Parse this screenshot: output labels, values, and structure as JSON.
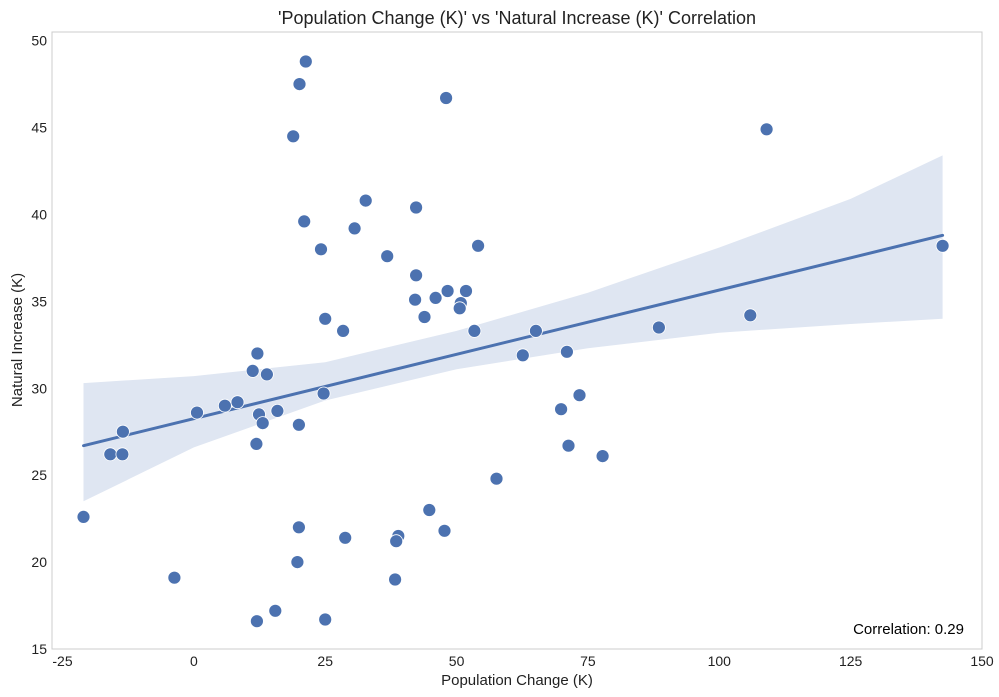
{
  "chart_data": {
    "type": "scatter",
    "title": "'Population Change (K)' vs 'Natural Increase (K)' Correlation",
    "xlabel": "Population Change (K)",
    "ylabel": "Natural Increase (K)",
    "xlim": [
      -27,
      150
    ],
    "ylim": [
      15,
      50.5
    ],
    "xticks": [
      -25,
      0,
      25,
      50,
      75,
      100,
      125,
      150
    ],
    "yticks": [
      15,
      20,
      25,
      30,
      35,
      40,
      45,
      50
    ],
    "grid": false,
    "annotation": "Correlation: 0.29",
    "colors": {
      "points": "#4c72b0",
      "regression_line": "#4c72b0",
      "confidence_band": "#dfe6f2",
      "frame": "#cccccc"
    },
    "regression": {
      "x": [
        -21,
        142.5
      ],
      "y": [
        26.7,
        38.8
      ]
    },
    "confidence_band": {
      "x": [
        -21,
        0,
        25,
        50,
        75,
        100,
        125,
        142.5
      ],
      "lower": [
        23.5,
        26.6,
        29.3,
        31.1,
        32.3,
        33.2,
        33.7,
        34.0
      ],
      "upper": [
        30.3,
        30.7,
        31.5,
        33.3,
        35.5,
        38.1,
        40.9,
        43.4
      ]
    },
    "points": [
      {
        "x": 21.3,
        "y": 48.8
      },
      {
        "x": 20.1,
        "y": 47.5
      },
      {
        "x": 48.0,
        "y": 46.7
      },
      {
        "x": 18.9,
        "y": 44.5
      },
      {
        "x": 109.0,
        "y": 44.9
      },
      {
        "x": 32.7,
        "y": 40.8
      },
      {
        "x": 42.3,
        "y": 40.4
      },
      {
        "x": 21.0,
        "y": 39.6
      },
      {
        "x": 30.6,
        "y": 39.2
      },
      {
        "x": 24.2,
        "y": 38.0
      },
      {
        "x": 54.1,
        "y": 38.2
      },
      {
        "x": 36.8,
        "y": 37.6
      },
      {
        "x": 142.5,
        "y": 38.2
      },
      {
        "x": 42.3,
        "y": 36.5
      },
      {
        "x": 48.3,
        "y": 35.6
      },
      {
        "x": 51.8,
        "y": 35.6
      },
      {
        "x": 46.0,
        "y": 35.2
      },
      {
        "x": 42.1,
        "y": 35.1
      },
      {
        "x": 50.8,
        "y": 34.9
      },
      {
        "x": 50.6,
        "y": 34.6
      },
      {
        "x": 43.9,
        "y": 34.1
      },
      {
        "x": 25.0,
        "y": 34.0
      },
      {
        "x": 105.9,
        "y": 34.2
      },
      {
        "x": 88.5,
        "y": 33.5
      },
      {
        "x": 28.4,
        "y": 33.3
      },
      {
        "x": 53.4,
        "y": 33.3
      },
      {
        "x": 65.1,
        "y": 33.3
      },
      {
        "x": 62.6,
        "y": 31.9
      },
      {
        "x": 71.0,
        "y": 32.1
      },
      {
        "x": 12.1,
        "y": 32.0
      },
      {
        "x": 11.2,
        "y": 31.0
      },
      {
        "x": 13.9,
        "y": 30.8
      },
      {
        "x": 24.7,
        "y": 29.7
      },
      {
        "x": 73.4,
        "y": 29.6
      },
      {
        "x": 8.3,
        "y": 29.2
      },
      {
        "x": 5.9,
        "y": 29.0
      },
      {
        "x": 69.9,
        "y": 28.8
      },
      {
        "x": 15.9,
        "y": 28.7
      },
      {
        "x": 0.6,
        "y": 28.6
      },
      {
        "x": 12.4,
        "y": 28.5
      },
      {
        "x": 13.1,
        "y": 28.0
      },
      {
        "x": 20.0,
        "y": 27.9
      },
      {
        "x": -13.5,
        "y": 27.5
      },
      {
        "x": 11.9,
        "y": 26.8
      },
      {
        "x": 71.3,
        "y": 26.7
      },
      {
        "x": -15.9,
        "y": 26.2
      },
      {
        "x": -13.6,
        "y": 26.2
      },
      {
        "x": 77.8,
        "y": 26.1
      },
      {
        "x": 57.6,
        "y": 24.8
      },
      {
        "x": 44.8,
        "y": 23.0
      },
      {
        "x": -21.0,
        "y": 22.6
      },
      {
        "x": 20.0,
        "y": 22.0
      },
      {
        "x": 47.7,
        "y": 21.8
      },
      {
        "x": 38.9,
        "y": 21.5
      },
      {
        "x": 28.8,
        "y": 21.4
      },
      {
        "x": 38.5,
        "y": 21.2
      },
      {
        "x": 19.7,
        "y": 20.0
      },
      {
        "x": -3.7,
        "y": 19.1
      },
      {
        "x": 38.3,
        "y": 19.0
      },
      {
        "x": 15.5,
        "y": 17.2
      },
      {
        "x": 12.0,
        "y": 16.6
      },
      {
        "x": 25.0,
        "y": 16.7
      }
    ]
  }
}
